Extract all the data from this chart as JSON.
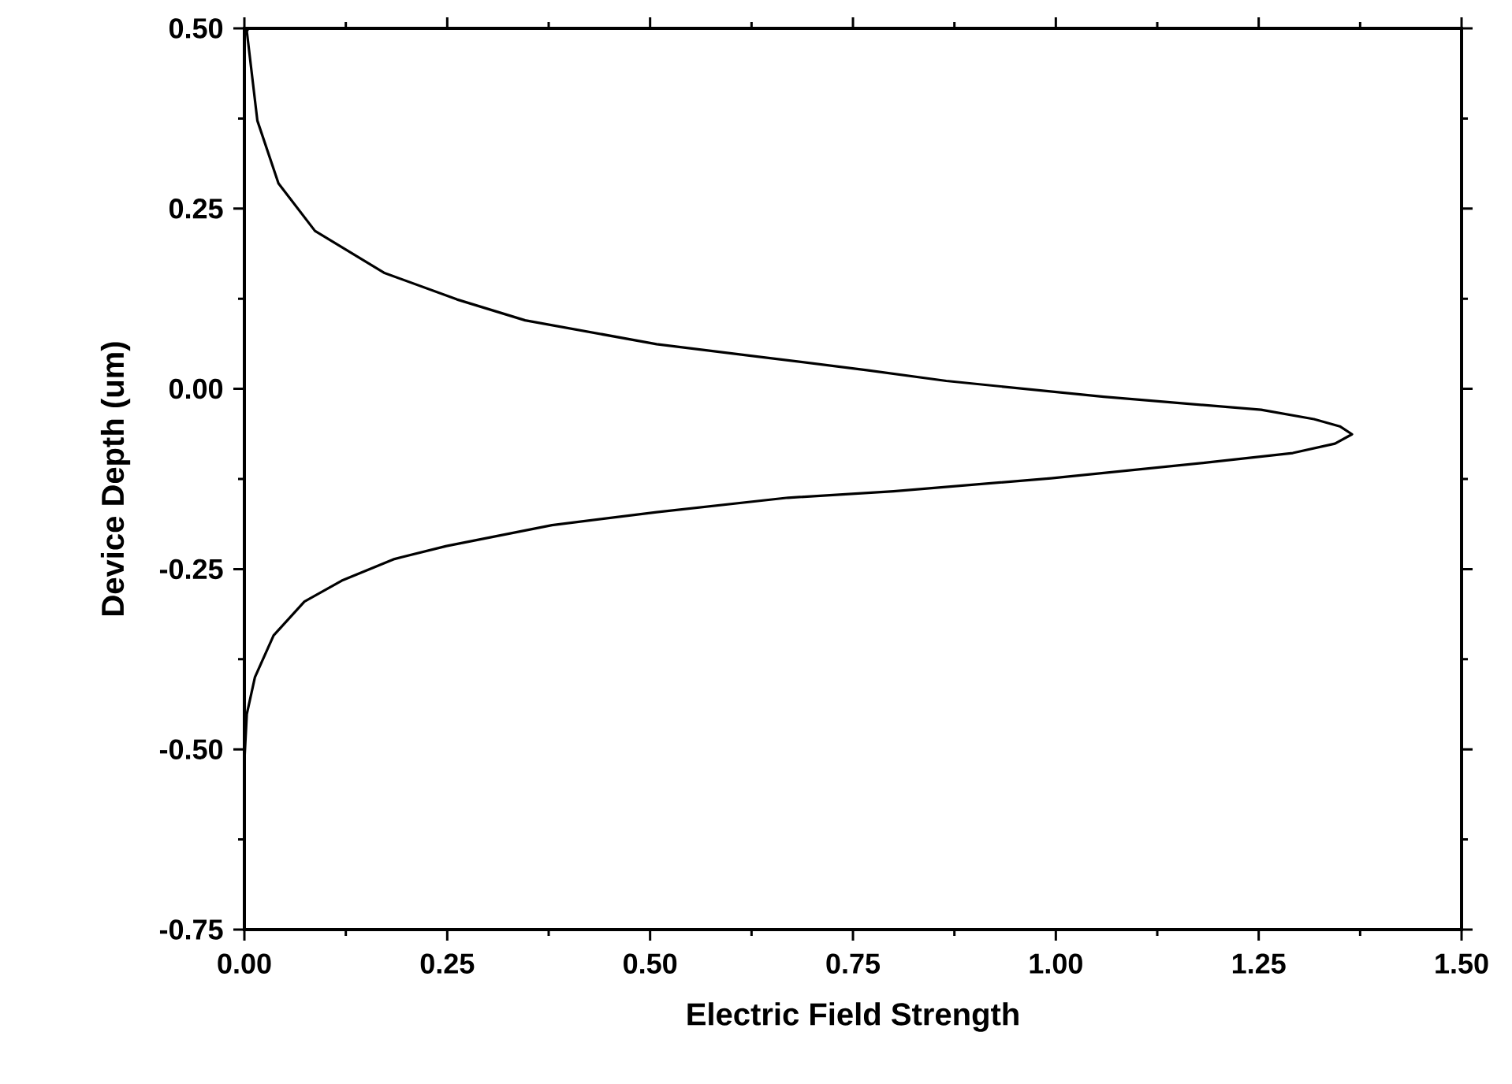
{
  "chart_data": {
    "type": "line",
    "xlabel": "Electric Field Strength",
    "ylabel": "Device Depth (um)",
    "series": [
      {
        "color": "#000000",
        "x": [
          0.005,
          0.003,
          0.016,
          0.042,
          0.087,
          0.172,
          0.262,
          0.346,
          0.508,
          0.638,
          0.767,
          0.865,
          1.059,
          1.253,
          1.318,
          1.35,
          1.365,
          1.344,
          1.292,
          1.188,
          0.994,
          0.8,
          0.67,
          0.508,
          0.379,
          0.249,
          0.185,
          0.12,
          0.074,
          0.036,
          0.013,
          0.003,
          0.0,
          0.0
        ],
        "values": [
          0.5,
          0.496,
          0.372,
          0.285,
          0.219,
          0.161,
          0.124,
          0.095,
          0.062,
          0.044,
          0.026,
          0.011,
          -0.011,
          -0.029,
          -0.042,
          -0.052,
          -0.063,
          -0.076,
          -0.089,
          -0.102,
          -0.124,
          -0.142,
          -0.151,
          -0.171,
          -0.189,
          -0.218,
          -0.236,
          -0.266,
          -0.295,
          -0.342,
          -0.4,
          -0.451,
          -0.516,
          -0.713
        ]
      }
    ],
    "xlim": [
      0,
      1.5
    ],
    "ylim": [
      -0.75,
      0.5
    ],
    "xticks": [
      {
        "value": 0,
        "label": "0.00"
      },
      {
        "value": 0.25,
        "label": "0.25"
      },
      {
        "value": 0.5,
        "label": "0.50"
      },
      {
        "value": 0.75,
        "label": "0.75"
      },
      {
        "value": 1.0,
        "label": "1.00"
      },
      {
        "value": 1.25,
        "label": "1.25"
      },
      {
        "value": 1.5,
        "label": "1.50"
      }
    ],
    "yticks": [
      {
        "value": -0.75,
        "label": "-0.75"
      },
      {
        "value": -0.5,
        "label": "-0.50"
      },
      {
        "value": -0.25,
        "label": "-0.25"
      },
      {
        "value": 0,
        "label": "0.00"
      },
      {
        "value": 0.25,
        "label": "0.25"
      },
      {
        "value": 0.5,
        "label": "0.50"
      }
    ],
    "line_style": "solid"
  }
}
